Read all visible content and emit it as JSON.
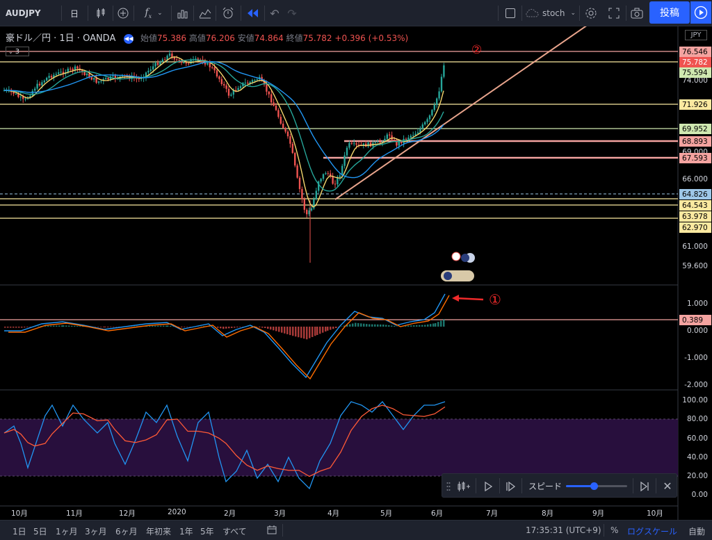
{
  "toolbar": {
    "symbol": "AUDJPY",
    "interval": "日",
    "indicator_search": "stoch",
    "post_label": "投稿"
  },
  "legend": {
    "title": "豪ドル／円 · 1日 · OANDA",
    "open_label": "始値",
    "open": "75.386",
    "high_label": "高値",
    "high": "76.206",
    "low_label": "安値",
    "low": "74.864",
    "close_label": "終値",
    "close": "75.782",
    "change": "+0.396 (+0.53%)",
    "indicator_count": "3"
  },
  "annotations": {
    "marker_1": "①",
    "marker_2": "②"
  },
  "price_axis": {
    "currency": "JPY",
    "labels": [
      "74.000",
      "69.000",
      "66.000",
      "61.000",
      "59.600"
    ],
    "tags": [
      {
        "text": "76.546",
        "color": "#f4a3a0"
      },
      {
        "text": "75.782",
        "color": "#ef5350"
      },
      {
        "text": "75.594",
        "color": "#cfe8b0"
      },
      {
        "text": "71.926",
        "color": "#fbe9a0"
      },
      {
        "text": "69.952",
        "color": "#cfe8b0"
      },
      {
        "text": "68.893",
        "color": "#f4a3a0"
      },
      {
        "text": "67.593",
        "color": "#f4a3a0"
      },
      {
        "text": "64.826",
        "color": "#9ec7e8"
      },
      {
        "text": "64.543",
        "color": "#fbe9a0"
      },
      {
        "text": "63.978",
        "color": "#fbe9a0"
      },
      {
        "text": "62.970",
        "color": "#fbe9a0"
      }
    ]
  },
  "macd_axis": {
    "labels": [
      "1.000",
      "0.000",
      "-1.000",
      "-2.000"
    ],
    "tag": "0.389"
  },
  "stoch_axis": {
    "labels": [
      "100.00",
      "80.00",
      "60.00",
      "40.00",
      "20.00",
      "0.00"
    ]
  },
  "time_axis": {
    "labels": [
      "10月",
      "11月",
      "12月",
      "2020",
      "2月",
      "3月",
      "4月",
      "5月",
      "6月",
      "7月",
      "8月",
      "9月",
      "10月"
    ]
  },
  "replay": {
    "speed_label": "スピード",
    "speed_value": 0.45
  },
  "bottombar": {
    "ranges": [
      "1日",
      "5日",
      "1ヶ月",
      "3ヶ月",
      "6ヶ月",
      "年初来",
      "1年",
      "5年",
      "すべて"
    ],
    "clock": "17:35:31 (UTC+9)",
    "percent": "%",
    "log_scale": "ログスケール",
    "auto": "自動"
  },
  "colors": {
    "up": "#26a69a",
    "down": "#ef5350",
    "accent": "#2962ff",
    "stoch_zone": "#2a1040"
  }
}
